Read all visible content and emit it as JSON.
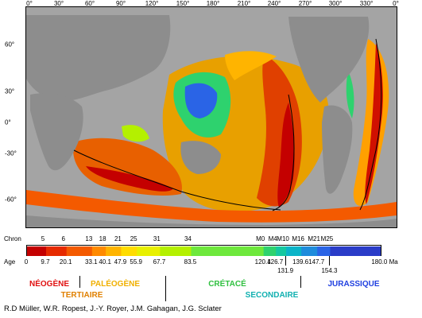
{
  "map": {
    "lon_labels": [
      "0°",
      "30°",
      "60°",
      "90°",
      "120°",
      "150°",
      "180°",
      "210°",
      "240°",
      "270°",
      "300°",
      "330°",
      "0°"
    ],
    "lat_labels": [
      "60°",
      "30°",
      "0°",
      "-30°",
      "-60°"
    ],
    "land_color": "#8d8d8d",
    "shelf_color": "#c8c8c8"
  },
  "legend": {
    "chron_title": "Chron",
    "chron_labels": [
      "5",
      "6",
      "13",
      "18",
      "21",
      "25",
      "31",
      "34",
      "M0",
      "M4",
      "M10",
      "M16",
      "M21",
      "M25"
    ],
    "age_title": "Age",
    "age_labels_top": [
      "0",
      "9.7",
      "20.1",
      "33.1",
      "40.1",
      "47.9",
      "55.9",
      "67.7",
      "83.5",
      "120.4",
      "126.7",
      "139.6",
      "147.7",
      "180.0 Ma"
    ],
    "age_labels_low": [
      "131.9",
      "154.3"
    ],
    "age_stops": [
      0,
      9.7,
      20.1,
      33.1,
      40.1,
      47.9,
      55.9,
      67.7,
      83.5,
      120.4,
      126.7,
      131.9,
      139.6,
      147.7,
      154.3,
      180.0
    ],
    "colors": [
      "#c40000",
      "#e62a00",
      "#f45a00",
      "#ff8a00",
      "#ffb400",
      "#ffdc00",
      "#e8f000",
      "#b4f000",
      "#6ee83c",
      "#2ed26e",
      "#14c8a0",
      "#0ab4c8",
      "#1e8cdc",
      "#2a64e6",
      "#2a3cc8"
    ]
  },
  "eras": {
    "neogene": "NÉOGÈNE",
    "paleogene": "PALÉOGÈNE",
    "tertiaire": "TERTIAIRE",
    "cretace": "CRÉTACÉ",
    "secondaire": "SECONDAIRE",
    "jurassique": "JURASSIQUE",
    "colors": {
      "neogene": "#e01010",
      "paleogene": "#f0b000",
      "tertiaire": "#e08000",
      "cretace": "#30c040",
      "secondaire": "#10b0b0",
      "jurassique": "#2040e0"
    }
  },
  "credits": "R.D Müller, W.R. Ropest, J.-Y. Royer, J.M. Gahagan, J.G. Sclater"
}
